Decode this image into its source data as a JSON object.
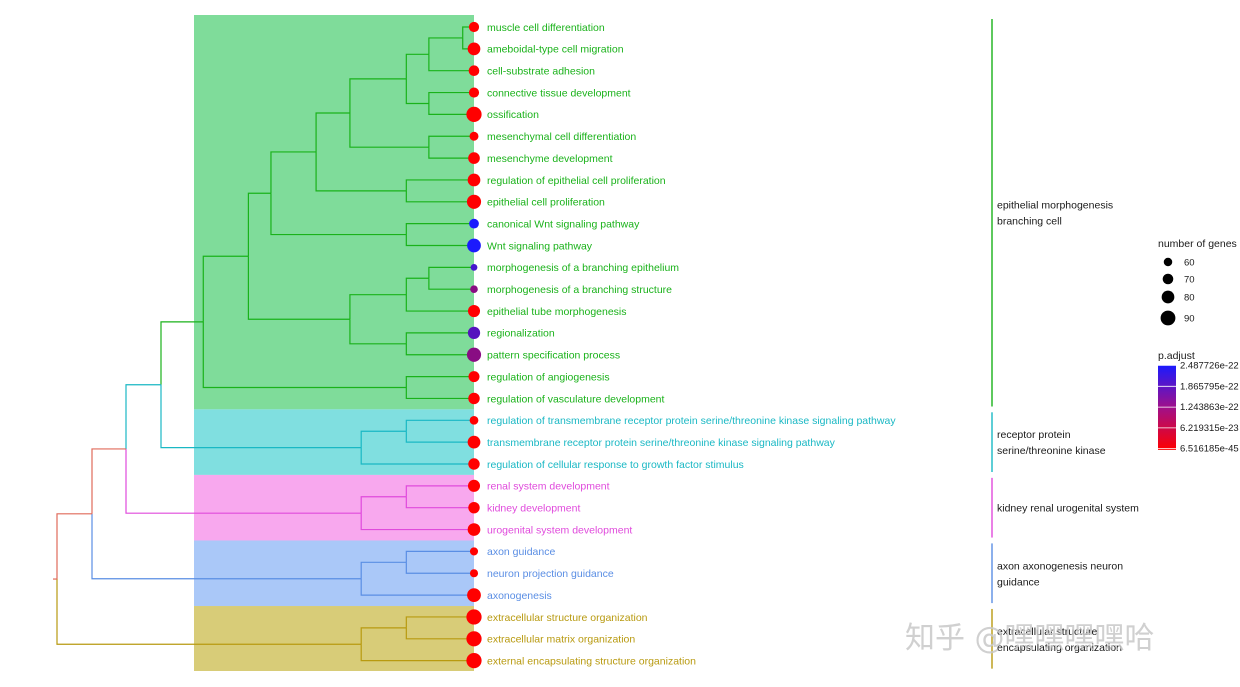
{
  "chart_data": {
    "type": "scatter",
    "title": "",
    "xlabel": "",
    "ylabel": "",
    "terms": [
      {
        "name": "muscle cell differentiation",
        "genes": 68,
        "p_adjust": 5e-45,
        "cluster": 0
      },
      {
        "name": "ameboidal-type cell migration",
        "genes": 80,
        "p_adjust": 5e-45,
        "cluster": 0
      },
      {
        "name": "cell-substrate adhesion",
        "genes": 70,
        "p_adjust": 5e-45,
        "cluster": 0
      },
      {
        "name": "connective tissue development",
        "genes": 68,
        "p_adjust": 5e-45,
        "cluster": 0
      },
      {
        "name": "ossification",
        "genes": 92,
        "p_adjust": 5e-45,
        "cluster": 0
      },
      {
        "name": "mesenchymal cell differentiation",
        "genes": 62,
        "p_adjust": 5e-45,
        "cluster": 0
      },
      {
        "name": "mesenchyme development",
        "genes": 75,
        "p_adjust": 5e-45,
        "cluster": 0
      },
      {
        "name": "regulation of epithelial cell proliferation",
        "genes": 80,
        "p_adjust": 5e-45,
        "cluster": 0
      },
      {
        "name": "epithelial cell proliferation",
        "genes": 87,
        "p_adjust": 5e-45,
        "cluster": 0
      },
      {
        "name": "canonical Wnt signaling pathway",
        "genes": 66,
        "p_adjust": 2.4e-22,
        "cluster": 0
      },
      {
        "name": "Wnt signaling pathway",
        "genes": 85,
        "p_adjust": 2.4e-22,
        "cluster": 0
      },
      {
        "name": "morphogenesis of a branching epithelium",
        "genes": 52,
        "p_adjust": 1e-22,
        "cluster": 0
      },
      {
        "name": "morphogenesis of a branching structure",
        "genes": 56,
        "p_adjust": 1.5e-23,
        "cluster": 0
      },
      {
        "name": "epithelial tube morphogenesis",
        "genes": 77,
        "p_adjust": 5e-45,
        "cluster": 0
      },
      {
        "name": "regionalization",
        "genes": 78,
        "p_adjust": 7e-23,
        "cluster": 0
      },
      {
        "name": "pattern specification process",
        "genes": 87,
        "p_adjust": 1.5e-23,
        "cluster": 0
      },
      {
        "name": "regulation of angiogenesis",
        "genes": 72,
        "p_adjust": 5e-45,
        "cluster": 0
      },
      {
        "name": "regulation of vasculature development",
        "genes": 74,
        "p_adjust": 5e-45,
        "cluster": 0
      },
      {
        "name": "regulation of transmembrane receptor protein serine/threonine kinase signaling pathway",
        "genes": 61,
        "p_adjust": 5e-45,
        "cluster": 1
      },
      {
        "name": "transmembrane receptor protein serine/threonine kinase signaling pathway",
        "genes": 80,
        "p_adjust": 5e-45,
        "cluster": 1
      },
      {
        "name": "regulation of cellular response to growth factor stimulus",
        "genes": 74,
        "p_adjust": 5e-45,
        "cluster": 1
      },
      {
        "name": "renal system development",
        "genes": 77,
        "p_adjust": 5e-45,
        "cluster": 2
      },
      {
        "name": "kidney development",
        "genes": 74,
        "p_adjust": 5e-45,
        "cluster": 2
      },
      {
        "name": "urogenital system development",
        "genes": 80,
        "p_adjust": 5e-45,
        "cluster": 2
      },
      {
        "name": "axon guidance",
        "genes": 58,
        "p_adjust": 5e-45,
        "cluster": 3
      },
      {
        "name": "neuron projection guidance",
        "genes": 58,
        "p_adjust": 5e-45,
        "cluster": 3
      },
      {
        "name": "axonogenesis",
        "genes": 85,
        "p_adjust": 5e-45,
        "cluster": 3
      },
      {
        "name": "extracellular structure organization",
        "genes": 92,
        "p_adjust": 5e-45,
        "cluster": 4
      },
      {
        "name": "extracellular matrix organization",
        "genes": 92,
        "p_adjust": 5e-45,
        "cluster": 4
      },
      {
        "name": "external encapsulating structure organization",
        "genes": 92,
        "p_adjust": 5e-45,
        "cluster": 4
      }
    ],
    "clusters": [
      {
        "label": [
          "epithelial morphogenesis",
          "branching cell"
        ],
        "color": "#1ab21a",
        "fill": "#7fdc9a"
      },
      {
        "label": [
          "receptor protein",
          "serine/threonine kinase"
        ],
        "color": "#1ab8c4",
        "fill": "#80dfe0"
      },
      {
        "label": [
          "kidney renal urogenital system"
        ],
        "color": "#e04adc",
        "fill": "#f8a8ee"
      },
      {
        "label": [
          "axon axonogenesis neuron",
          "guidance"
        ],
        "color": "#5a8ee4",
        "fill": "#aac8f8"
      },
      {
        "label": [
          "extracellular structure",
          "encapsulating organization"
        ],
        "color": "#b89a10",
        "fill": "#d8cc78"
      }
    ],
    "dendrogram": {
      "edges": [
        [
          0,
          1,
          0.52
        ],
        [
          2,
          "n0",
          0.58
        ],
        [
          3,
          4,
          0.58
        ],
        [
          "n1",
          "n2",
          0.62
        ],
        [
          5,
          6,
          0.58
        ],
        [
          "n3",
          "n4",
          0.72
        ],
        [
          7,
          8,
          0.62
        ],
        [
          "n5",
          "n6",
          0.78
        ],
        [
          9,
          10,
          0.62
        ],
        [
          "n7",
          "n8",
          0.86
        ],
        [
          11,
          12,
          0.58
        ],
        [
          13,
          "n10",
          0.62
        ],
        [
          14,
          15,
          0.62
        ],
        [
          "n11",
          "n12",
          0.72
        ],
        [
          "n9",
          "n13",
          0.9
        ],
        [
          16,
          17,
          0.62
        ],
        [
          "n14",
          "n15",
          0.98
        ],
        [
          18,
          19,
          0.62
        ],
        [
          20,
          "n17",
          0.7
        ],
        [
          21,
          22,
          0.62
        ],
        [
          23,
          "n19",
          0.7
        ],
        [
          24,
          25,
          0.62
        ],
        [
          26,
          "n21",
          0.7
        ],
        [
          27,
          28,
          0.62
        ],
        [
          29,
          "n23",
          0.7
        ],
        [
          "n16",
          "n18",
          1.15
        ],
        [
          "n25",
          "n20",
          1.35
        ],
        [
          "n26",
          "n22",
          1.4
        ],
        [
          "n27",
          "n24",
          1.45
        ]
      ],
      "edge_group": [
        0,
        0,
        0,
        0,
        0,
        0,
        0,
        0,
        0,
        0,
        0,
        0,
        0,
        0,
        0,
        0,
        0,
        1,
        1,
        2,
        2,
        3,
        3,
        4,
        4,
        "root-a",
        "root-b",
        "root-c",
        "root-d"
      ]
    },
    "legend_size": {
      "title": "number of genes",
      "values": [
        60,
        70,
        80,
        90
      ]
    },
    "legend_color": {
      "title": "p.adjust",
      "ticks": [
        "2.487726e-22",
        "1.865795e-22",
        "1.243863e-22",
        "6.219315e-23",
        "6.516185e-45"
      ],
      "low_color": "#ff0000",
      "high_color": "#1a1aff"
    }
  },
  "watermark": {
    "text": "知乎 @嘿嘿嘿嘿哈"
  }
}
